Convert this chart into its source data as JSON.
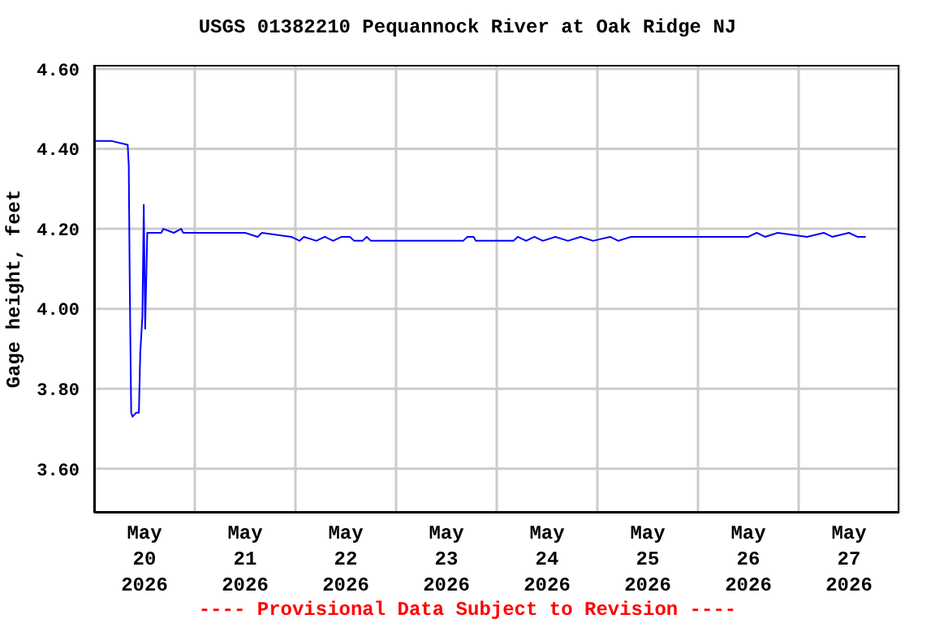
{
  "chart_data": {
    "type": "line",
    "title": "USGS 01382210 Pequannock River at Oak Ridge NJ",
    "ylabel": "Gage height, feet",
    "annotations": [
      "---- Provisional Data Subject to Revision ----"
    ],
    "x": [
      "2026-05-20T00:00",
      "2026-05-20T04:00",
      "2026-05-20T08:00",
      "2026-05-20T08:15",
      "2026-05-20T08:30",
      "2026-05-20T08:50",
      "2026-05-20T09:10",
      "2026-05-20T10:00",
      "2026-05-20T10:40",
      "2026-05-20T11:00",
      "2026-05-20T11:30",
      "2026-05-20T11:50",
      "2026-05-20T12:10",
      "2026-05-20T12:40",
      "2026-05-20T16:00",
      "2026-05-20T16:30",
      "2026-05-20T19:00",
      "2026-05-20T20:45",
      "2026-05-20T21:15",
      "2026-05-21T12:00",
      "2026-05-21T15:00",
      "2026-05-21T16:00",
      "2026-05-21T23:00",
      "2026-05-22T01:00",
      "2026-05-22T02:00",
      "2026-05-22T05:00",
      "2026-05-22T07:00",
      "2026-05-22T09:00",
      "2026-05-22T11:00",
      "2026-05-22T13:00",
      "2026-05-22T14:00",
      "2026-05-22T16:00",
      "2026-05-22T17:00",
      "2026-05-22T18:00",
      "2026-05-23T00:00",
      "2026-05-23T12:00",
      "2026-05-23T16:00",
      "2026-05-23T17:00",
      "2026-05-23T18:30",
      "2026-05-23T19:00",
      "2026-05-24T04:00",
      "2026-05-24T05:00",
      "2026-05-24T07:00",
      "2026-05-24T09:00",
      "2026-05-24T11:00",
      "2026-05-24T14:00",
      "2026-05-24T17:00",
      "2026-05-24T20:00",
      "2026-05-24T23:00",
      "2026-05-25T03:00",
      "2026-05-25T05:00",
      "2026-05-25T08:00",
      "2026-05-26T12:00",
      "2026-05-26T14:00",
      "2026-05-26T16:00",
      "2026-05-26T19:00",
      "2026-05-27T02:00",
      "2026-05-27T06:00",
      "2026-05-27T08:00",
      "2026-05-27T12:00",
      "2026-05-27T14:00",
      "2026-05-27T16:00"
    ],
    "series": [
      {
        "color": "#0000ff",
        "values": [
          4.42,
          4.42,
          4.41,
          4.36,
          4.05,
          3.74,
          3.73,
          3.74,
          3.74,
          3.89,
          3.98,
          4.26,
          3.95,
          4.19,
          4.19,
          4.2,
          4.19,
          4.2,
          4.19,
          4.19,
          4.18,
          4.19,
          4.18,
          4.17,
          4.18,
          4.17,
          4.18,
          4.17,
          4.18,
          4.18,
          4.17,
          4.17,
          4.18,
          4.17,
          4.17,
          4.17,
          4.17,
          4.18,
          4.18,
          4.17,
          4.17,
          4.18,
          4.17,
          4.18,
          4.17,
          4.18,
          4.17,
          4.18,
          4.17,
          4.18,
          4.17,
          4.18,
          4.18,
          4.19,
          4.18,
          4.19,
          4.18,
          4.19,
          4.18,
          4.19,
          4.18,
          4.18
        ]
      }
    ],
    "xlim": [
      "2026-05-20T00:00",
      "2026-05-28T00:00"
    ],
    "xticks": [
      {
        "value": "2026-05-20T00:00",
        "label": null
      },
      {
        "value": "2026-05-20T12:00",
        "label": "May 20 2026"
      },
      {
        "value": "2026-05-21T00:00",
        "label": null
      },
      {
        "value": "2026-05-21T12:00",
        "label": "May 21 2026"
      },
      {
        "value": "2026-05-22T00:00",
        "label": null
      },
      {
        "value": "2026-05-22T12:00",
        "label": "May 22 2026"
      },
      {
        "value": "2026-05-23T00:00",
        "label": null
      },
      {
        "value": "2026-05-23T12:00",
        "label": "May 23 2026"
      },
      {
        "value": "2026-05-24T00:00",
        "label": null
      },
      {
        "value": "2026-05-24T12:00",
        "label": "May 24 2026"
      },
      {
        "value": "2026-05-25T00:00",
        "label": null
      },
      {
        "value": "2026-05-25T12:00",
        "label": "May 25 2026"
      },
      {
        "value": "2026-05-26T00:00",
        "label": null
      },
      {
        "value": "2026-05-26T12:00",
        "label": "May 26 2026"
      },
      {
        "value": "2026-05-27T00:00",
        "label": null
      },
      {
        "value": "2026-05-27T12:00",
        "label": "May 27 2026"
      },
      {
        "value": "2026-05-28T00:00",
        "label": null
      }
    ],
    "ylim": [
      3.49,
      4.61
    ],
    "yticks": [
      {
        "value": 3.6,
        "label": "3.60"
      },
      {
        "value": 3.8,
        "label": "3.80"
      },
      {
        "value": 4.0,
        "label": "4.00"
      },
      {
        "value": 4.2,
        "label": "4.20"
      },
      {
        "value": 4.4,
        "label": "4.40"
      },
      {
        "value": 4.6,
        "label": "4.60"
      }
    ],
    "grid": true,
    "legend": false,
    "marker": "none",
    "line_style": "solid"
  }
}
